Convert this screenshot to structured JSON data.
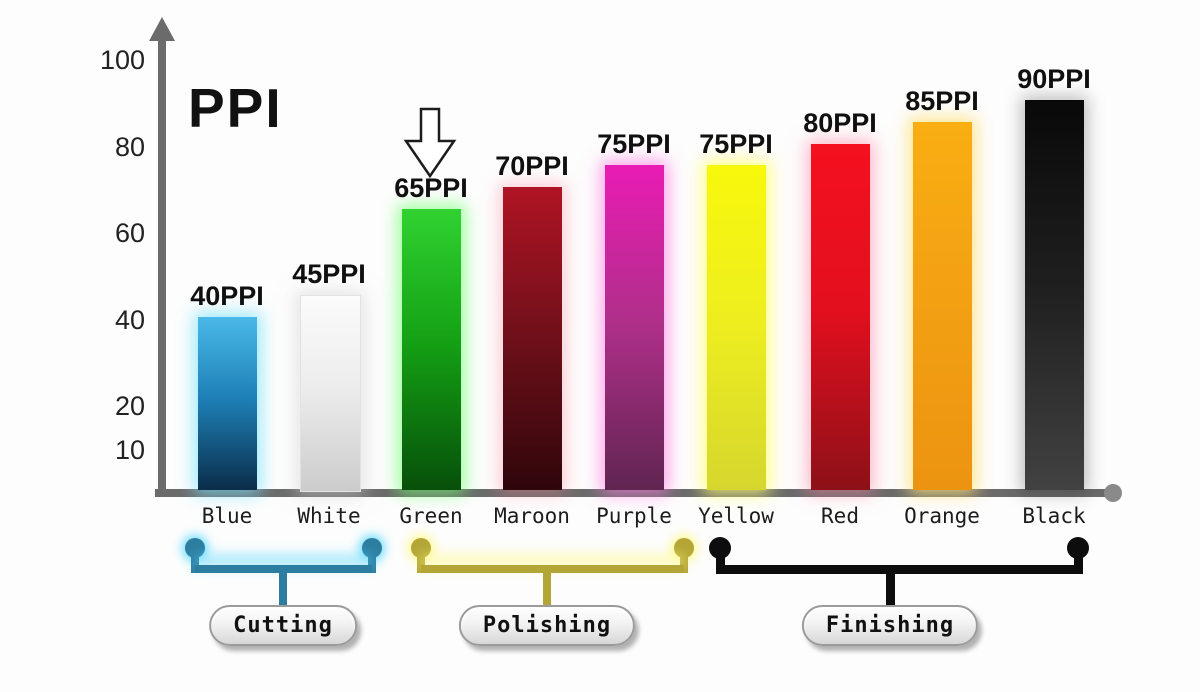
{
  "chart_data": {
    "type": "bar",
    "title": "PPI",
    "xlabel": "",
    "ylabel": "",
    "ylim": [
      0,
      100
    ],
    "yticks": [
      10,
      20,
      40,
      60,
      80,
      100
    ],
    "grid": false,
    "legend": "none",
    "categories": [
      "Blue",
      "White",
      "Green",
      "Maroon",
      "Purple",
      "Yellow",
      "Red",
      "Orange",
      "Black"
    ],
    "values": [
      40,
      45,
      65,
      70,
      75,
      75,
      80,
      85,
      90
    ],
    "bar_value_labels": [
      "40PPI",
      "45PPI",
      "65PPI",
      "70PPI",
      "75PPI",
      "75PPI",
      "80PPI",
      "85PPI",
      "90PPI"
    ],
    "bar_styles": [
      {
        "top": "#49b9e8",
        "mid": "#1d7fb5",
        "bottom": "#0b2d4a",
        "glow": "rgba(120,225,255,0.75)"
      },
      {
        "top": "#fbfbfb",
        "mid": "#ececec",
        "bottom": "#cccccc",
        "glow": "rgba(210,210,210,0.55)",
        "border": "#e2e2e2"
      },
      {
        "top": "#30d230",
        "mid": "#14a014",
        "bottom": "#07500a",
        "glow": "rgba(110,255,110,0.7)"
      },
      {
        "top": "#b01424",
        "mid": "#71101a",
        "bottom": "#2f060a",
        "glow": "rgba(255,130,150,0.4)"
      },
      {
        "top": "#e91cb4",
        "mid": "#b02f8a",
        "bottom": "#602551",
        "glow": "rgba(255,120,225,0.7)"
      },
      {
        "top": "#f8f80c",
        "mid": "#eeee1f",
        "bottom": "#d6d62e",
        "glow": "rgba(255,255,110,0.85)"
      },
      {
        "top": "#f4101f",
        "mid": "#e30f1e",
        "bottom": "#8d1018",
        "glow": "rgba(255,130,160,0.55)"
      },
      {
        "top": "#f9ae12",
        "mid": "#f3a013",
        "bottom": "#ec9411",
        "glow": "rgba(255,225,120,0.85)"
      },
      {
        "top": "#090909",
        "mid": "#1f1f1f",
        "bottom": "#424242",
        "glow": "rgba(0,0,0,0.25)"
      }
    ],
    "groups": [
      {
        "label": "Cutting",
        "members": [
          "Blue",
          "White"
        ],
        "line_color": "#2d7da0",
        "glow": "rgba(85,215,255,0.85)"
      },
      {
        "label": "Polishing",
        "members": [
          "Green",
          "Maroon",
          "Purple"
        ],
        "line_color": "#b4a636",
        "glow": "rgba(255,250,130,0.9)"
      },
      {
        "label": "Finishing",
        "members": [
          "Yellow",
          "Red",
          "Orange",
          "Black"
        ],
        "line_color": "#0d0d0d",
        "glow": "rgba(0,0,0,0)"
      }
    ],
    "annotations": [
      {
        "type": "down-arrow",
        "target_category": "Green"
      }
    ],
    "axis_color": "#6b6b6b"
  }
}
